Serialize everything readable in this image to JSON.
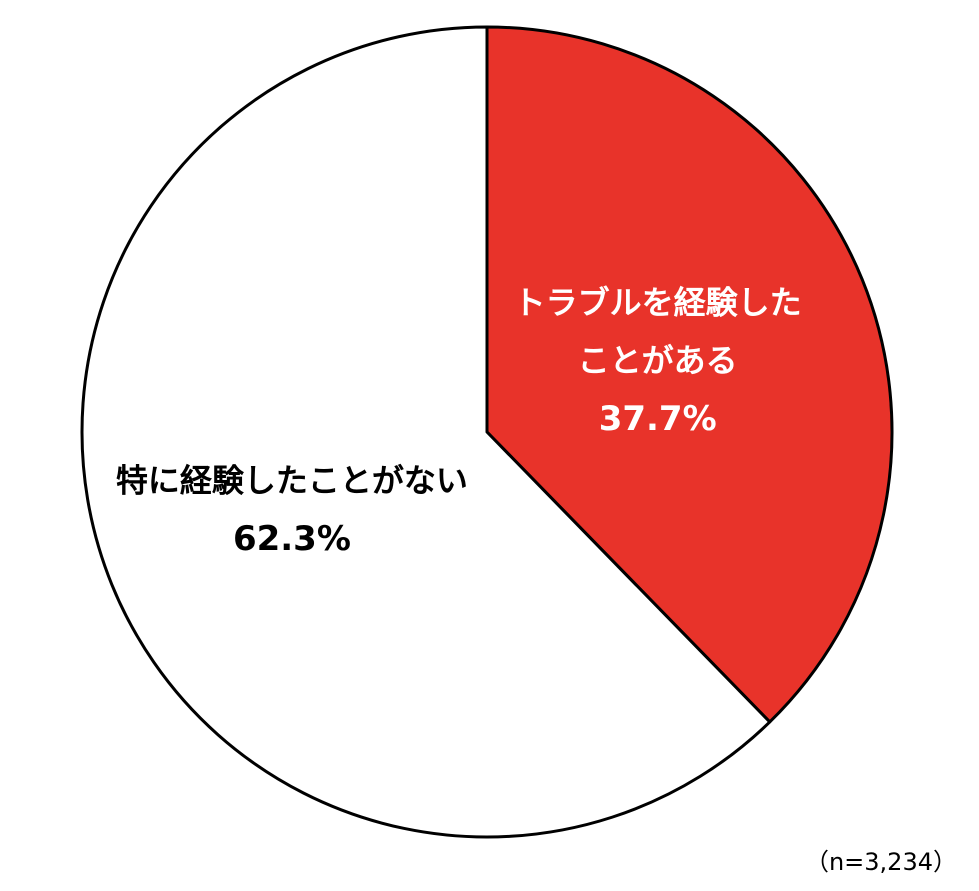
{
  "chart_data": {
    "type": "pie",
    "slices": [
      {
        "label_lines": [
          "トラブルを経験した",
          "ことがある"
        ],
        "value": 37.7,
        "value_label": "37.7%",
        "color": "#e8332a",
        "text_color": "#ffffff"
      },
      {
        "label_lines": [
          "特に経験したことがない"
        ],
        "value": 62.3,
        "value_label": "62.3%",
        "color": "#ffffff",
        "text_color": "#000000"
      }
    ],
    "start": "12 o'clock",
    "direction": "clockwise",
    "outline_color": "#000000",
    "note": "（n=3,234）"
  }
}
